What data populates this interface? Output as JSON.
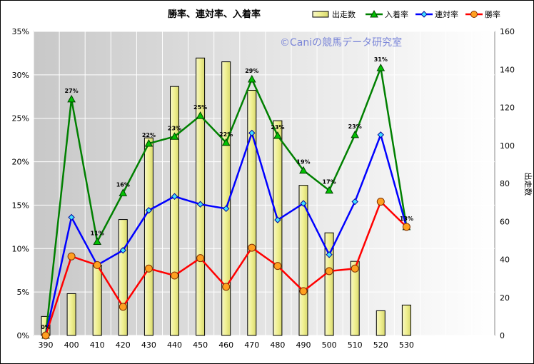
{
  "chart_data": {
    "type": "bar+line",
    "title": "勝率、連対率、入着率",
    "watermark": "©Caniの競馬データ研究室",
    "categories": [
      "390",
      "400",
      "410",
      "420",
      "430",
      "440",
      "450",
      "460",
      "470",
      "480",
      "490",
      "500",
      "510",
      "520",
      "530"
    ],
    "series": [
      {
        "name": "出走数",
        "type": "bar",
        "axis": "right",
        "color": "#f0f0a0",
        "values": [
          10,
          22,
          37,
          61,
          104,
          131,
          146,
          144,
          129,
          113,
          79,
          54,
          39,
          13,
          16
        ]
      },
      {
        "name": "入着率",
        "type": "line",
        "axis": "left",
        "color": "#008000",
        "marker": "triangle",
        "values": [
          0,
          27.2,
          10.8,
          16.4,
          22.1,
          22.9,
          25.3,
          22.2,
          29.5,
          23.0,
          19.0,
          16.7,
          23.1,
          30.8,
          12.5
        ]
      },
      {
        "name": "連対率",
        "type": "line",
        "axis": "left",
        "color": "#0000ff",
        "marker": "diamond",
        "values": [
          0,
          13.6,
          8.1,
          9.8,
          14.4,
          16.0,
          15.1,
          14.6,
          23.3,
          13.3,
          15.2,
          9.3,
          15.4,
          23.1,
          12.5
        ]
      },
      {
        "name": "勝率",
        "type": "line",
        "axis": "left",
        "color": "#ff0000",
        "marker": "circle",
        "values": [
          0,
          9.1,
          8.1,
          3.3,
          7.7,
          6.9,
          8.9,
          5.6,
          10.1,
          8.0,
          5.1,
          7.4,
          7.7,
          15.4,
          12.5
        ]
      }
    ],
    "data_labels": {
      "series": "入着率",
      "labels": [
        "0%",
        "27%",
        "11%",
        "16%",
        "22%",
        "23%",
        "25%",
        "22%",
        "29%",
        "23%",
        "19%",
        "17%",
        "23%",
        "31%",
        "13%"
      ]
    },
    "yleft": {
      "ylim": [
        0,
        35
      ],
      "ticks": [
        "0%",
        "5%",
        "10%",
        "15%",
        "20%",
        "25%",
        "30%",
        "35%"
      ]
    },
    "yright": {
      "label": "出走数",
      "ylim": [
        0,
        160
      ],
      "ticks": [
        "0",
        "20",
        "40",
        "60",
        "80",
        "100",
        "120",
        "140",
        "160"
      ]
    },
    "grid": true,
    "legend": "top-right",
    "colors": {
      "plot_bg_left": "#c8c8c8",
      "plot_bg_right": "#ffffff",
      "bar_fill": "#f0f0a0",
      "bar_stroke": "#000000"
    }
  }
}
